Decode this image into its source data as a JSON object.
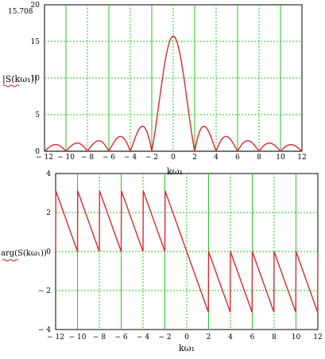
{
  "chart_data": [
    {
      "type": "line",
      "id": "magnitude",
      "peak_label": "15.708",
      "ylabel": "|S(kω₁)|",
      "xlabel": "kω₁",
      "xlim": [
        -12,
        12
      ],
      "ylim": [
        0,
        20
      ],
      "xticks": [
        -12,
        -10,
        -8,
        -6,
        -4,
        -2,
        0,
        2,
        4,
        6,
        8,
        10,
        12
      ],
      "yticks": [
        0,
        5,
        10,
        15,
        20
      ],
      "xtick_labels": [
        "− 12",
        "− 10",
        "− 8",
        "− 6",
        "− 4",
        "− 2",
        "0",
        "2",
        "4",
        "6",
        "8",
        "10",
        "12"
      ],
      "ytick_labels": [
        "0",
        "5",
        "10",
        "15",
        "20"
      ],
      "grid": true,
      "dotted_baseline_y": 0,
      "series": [
        {
          "color": "#e0262b",
          "function": "abs_sinc",
          "amplitude": 15.708,
          "zero_spacing": 2,
          "x_range": [
            -12,
            12
          ]
        }
      ]
    },
    {
      "type": "line",
      "id": "phase",
      "ylabel": "arg(S(kω₁))",
      "xlabel": "kω₁",
      "xlim": [
        -12,
        12
      ],
      "ylim": [
        -4,
        4
      ],
      "xticks": [
        -12,
        -10,
        -8,
        -6,
        -4,
        -2,
        0,
        2,
        4,
        6,
        8,
        10,
        12
      ],
      "yticks": [
        -4,
        -2,
        0,
        2,
        4
      ],
      "xtick_labels": [
        "− 12",
        "− 10",
        "− 8",
        "− 6",
        "− 4",
        "− 2",
        "0",
        "2",
        "4",
        "6",
        "8",
        "10",
        "12"
      ],
      "ytick_labels": [
        "− 4",
        "− 2",
        "0",
        "2",
        "4"
      ],
      "grid": true,
      "series": [
        {
          "color": "#e0262b",
          "function": "sawtooth_phase",
          "slope": -1.5708,
          "jump_period": 2,
          "x_range": [
            -12,
            12
          ]
        }
      ]
    }
  ]
}
